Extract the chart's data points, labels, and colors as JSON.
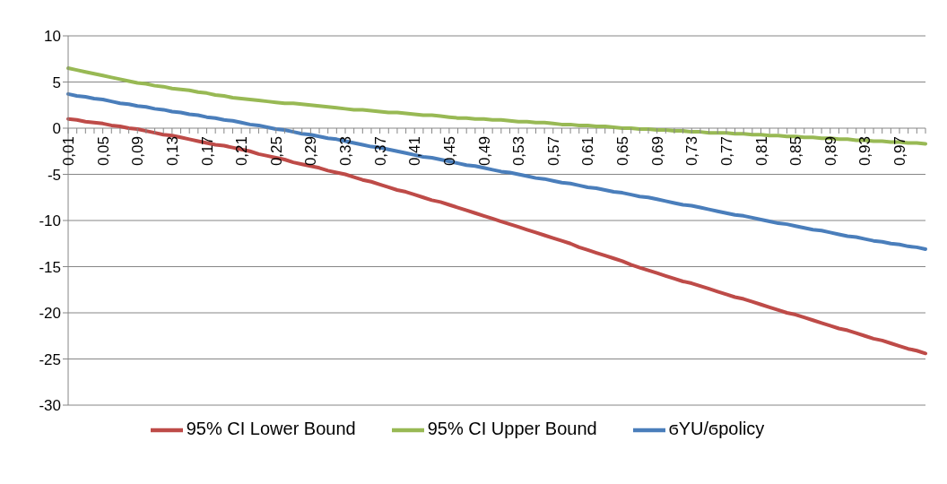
{
  "chart_data": {
    "type": "line",
    "categories": [
      "0,01",
      null,
      null,
      null,
      "0,05",
      null,
      null,
      null,
      "0,09",
      null,
      null,
      null,
      "0,13",
      null,
      null,
      null,
      "0,17",
      null,
      null,
      null,
      "0,21",
      null,
      null,
      null,
      "0,25",
      null,
      null,
      null,
      "0,29",
      null,
      null,
      null,
      "0,33",
      null,
      null,
      null,
      "0,37",
      null,
      null,
      null,
      "0,41",
      null,
      null,
      null,
      "0,45",
      null,
      null,
      null,
      "0,49",
      null,
      null,
      null,
      "0,53",
      null,
      null,
      null,
      "0,57",
      null,
      null,
      null,
      "0,61",
      null,
      null,
      null,
      "0,65",
      null,
      null,
      null,
      "0,69",
      null,
      null,
      null,
      "0,73",
      null,
      null,
      null,
      "0,77",
      null,
      null,
      null,
      "0,81",
      null,
      null,
      null,
      "0,85",
      null,
      null,
      null,
      "0,89",
      null,
      null,
      null,
      "0,93",
      null,
      null,
      null,
      "0,97",
      null,
      null,
      null
    ],
    "series": [
      {
        "name": "ϭYU/ϭpolicy",
        "color": "#4a7ebb",
        "values": [
          3.7,
          3.5,
          3.4,
          3.2,
          3.1,
          2.9,
          2.7,
          2.6,
          2.4,
          2.3,
          2.1,
          2.0,
          1.8,
          1.7,
          1.5,
          1.4,
          1.2,
          1.1,
          0.9,
          0.8,
          0.6,
          0.4,
          0.3,
          0.1,
          -0.1,
          -0.2,
          -0.4,
          -0.6,
          -0.7,
          -0.9,
          -1.1,
          -1.2,
          -1.4,
          -1.6,
          -1.8,
          -2.0,
          -2.1,
          -2.3,
          -2.5,
          -2.7,
          -2.9,
          -3.1,
          -3.2,
          -3.4,
          -3.6,
          -3.8,
          -4.0,
          -4.1,
          -4.3,
          -4.5,
          -4.7,
          -4.8,
          -5.0,
          -5.2,
          -5.4,
          -5.5,
          -5.7,
          -5.9,
          -6.0,
          -6.2,
          -6.4,
          -6.5,
          -6.7,
          -6.9,
          -7.0,
          -7.2,
          -7.4,
          -7.5,
          -7.7,
          -7.9,
          -8.1,
          -8.3,
          -8.4,
          -8.6,
          -8.8,
          -9.0,
          -9.2,
          -9.4,
          -9.5,
          -9.7,
          -9.9,
          -10.1,
          -10.3,
          -10.4,
          -10.6,
          -10.8,
          -11.0,
          -11.1,
          -11.3,
          -11.5,
          -11.7,
          -11.8,
          -12.0,
          -12.2,
          -12.3,
          -12.5,
          -12.6,
          -12.8,
          -12.9,
          -13.1
        ]
      },
      {
        "name": "95% CI Lower Bound",
        "color": "#be4b48",
        "values": [
          1.0,
          0.9,
          0.7,
          0.6,
          0.5,
          0.3,
          0.2,
          0.0,
          -0.1,
          -0.3,
          -0.5,
          -0.7,
          -0.8,
          -1.0,
          -1.2,
          -1.4,
          -1.6,
          -1.8,
          -1.9,
          -2.1,
          -2.3,
          -2.5,
          -2.8,
          -3.0,
          -3.2,
          -3.4,
          -3.7,
          -3.9,
          -4.1,
          -4.3,
          -4.6,
          -4.8,
          -5.0,
          -5.3,
          -5.6,
          -5.8,
          -6.1,
          -6.4,
          -6.7,
          -6.9,
          -7.2,
          -7.5,
          -7.8,
          -8.0,
          -8.3,
          -8.6,
          -8.9,
          -9.2,
          -9.5,
          -9.8,
          -10.1,
          -10.4,
          -10.7,
          -11.0,
          -11.3,
          -11.6,
          -11.9,
          -12.2,
          -12.5,
          -12.9,
          -13.2,
          -13.5,
          -13.8,
          -14.1,
          -14.4,
          -14.8,
          -15.1,
          -15.4,
          -15.7,
          -16.0,
          -16.3,
          -16.6,
          -16.8,
          -17.1,
          -17.4,
          -17.7,
          -18.0,
          -18.3,
          -18.5,
          -18.8,
          -19.1,
          -19.4,
          -19.7,
          -20.0,
          -20.2,
          -20.5,
          -20.8,
          -21.1,
          -21.4,
          -21.7,
          -21.9,
          -22.2,
          -22.5,
          -22.8,
          -23.0,
          -23.3,
          -23.6,
          -23.9,
          -24.1,
          -24.4
        ]
      },
      {
        "name": "95% CI Upper Bound",
        "color": "#98b954",
        "values": [
          6.5,
          6.3,
          6.1,
          5.9,
          5.7,
          5.5,
          5.3,
          5.1,
          4.9,
          4.8,
          4.6,
          4.5,
          4.3,
          4.2,
          4.1,
          3.9,
          3.8,
          3.6,
          3.5,
          3.3,
          3.2,
          3.1,
          3.0,
          2.9,
          2.8,
          2.7,
          2.7,
          2.6,
          2.5,
          2.4,
          2.3,
          2.2,
          2.1,
          2.0,
          2.0,
          1.9,
          1.8,
          1.7,
          1.7,
          1.6,
          1.5,
          1.4,
          1.4,
          1.3,
          1.2,
          1.1,
          1.1,
          1.0,
          1.0,
          0.9,
          0.9,
          0.8,
          0.7,
          0.7,
          0.6,
          0.6,
          0.5,
          0.4,
          0.4,
          0.3,
          0.3,
          0.2,
          0.2,
          0.1,
          0.0,
          0.0,
          -0.1,
          -0.1,
          -0.2,
          -0.2,
          -0.3,
          -0.3,
          -0.4,
          -0.4,
          -0.5,
          -0.5,
          -0.5,
          -0.6,
          -0.6,
          -0.7,
          -0.7,
          -0.8,
          -0.8,
          -0.9,
          -0.9,
          -1.0,
          -1.0,
          -1.1,
          -1.1,
          -1.2,
          -1.2,
          -1.3,
          -1.3,
          -1.4,
          -1.4,
          -1.5,
          -1.5,
          -1.6,
          -1.6,
          -1.7
        ]
      }
    ],
    "ylim": [
      -30,
      10
    ],
    "yticks": [
      -30,
      -25,
      -20,
      -15,
      -10,
      -5,
      0,
      5,
      10
    ],
    "grid": "y",
    "legend": "bottom",
    "marker": "none",
    "line_style": "solid"
  }
}
